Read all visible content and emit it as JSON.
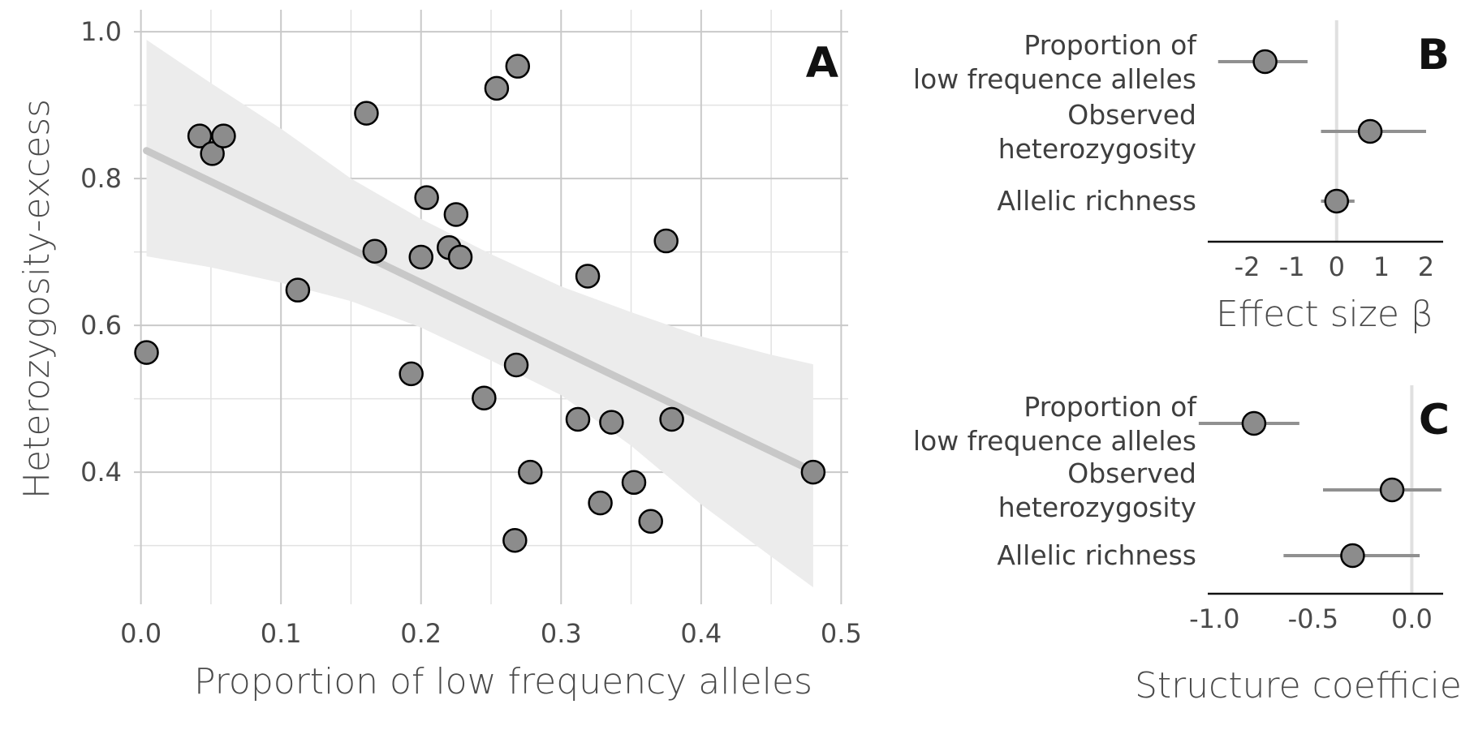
{
  "chart_data": [
    {
      "panel": "A",
      "type": "scatter",
      "xlabel": "Proportion of low frequency alleles",
      "ylabel": "Heterozygosity-excess",
      "xlim": [
        -0.005,
        0.505
      ],
      "ylim": [
        0.22,
        1.03
      ],
      "x_ticks": [
        0.0,
        0.1,
        0.2,
        0.3,
        0.4,
        0.5
      ],
      "x_tick_labels": [
        "0.0",
        "0.1",
        "0.2",
        "0.3",
        "0.4",
        "0.5"
      ],
      "y_ticks": [
        0.4,
        0.6,
        0.8,
        1.0
      ],
      "y_tick_labels": [
        "0.4",
        "0.6",
        "0.8",
        "1.0"
      ],
      "grid": true,
      "points": [
        {
          "x": 0.004,
          "y": 0.563
        },
        {
          "x": 0.042,
          "y": 0.858
        },
        {
          "x": 0.051,
          "y": 0.834
        },
        {
          "x": 0.059,
          "y": 0.858
        },
        {
          "x": 0.112,
          "y": 0.648
        },
        {
          "x": 0.161,
          "y": 0.889
        },
        {
          "x": 0.167,
          "y": 0.701
        },
        {
          "x": 0.193,
          "y": 0.534
        },
        {
          "x": 0.2,
          "y": 0.693
        },
        {
          "x": 0.204,
          "y": 0.774
        },
        {
          "x": 0.22,
          "y": 0.706
        },
        {
          "x": 0.225,
          "y": 0.751
        },
        {
          "x": 0.228,
          "y": 0.693
        },
        {
          "x": 0.245,
          "y": 0.501
        },
        {
          "x": 0.254,
          "y": 0.923
        },
        {
          "x": 0.267,
          "y": 0.307
        },
        {
          "x": 0.268,
          "y": 0.546
        },
        {
          "x": 0.269,
          "y": 0.953
        },
        {
          "x": 0.278,
          "y": 0.4
        },
        {
          "x": 0.312,
          "y": 0.472
        },
        {
          "x": 0.319,
          "y": 0.667
        },
        {
          "x": 0.328,
          "y": 0.358
        },
        {
          "x": 0.336,
          "y": 0.468
        },
        {
          "x": 0.352,
          "y": 0.386
        },
        {
          "x": 0.364,
          "y": 0.333
        },
        {
          "x": 0.375,
          "y": 0.715
        },
        {
          "x": 0.379,
          "y": 0.472
        },
        {
          "x": 0.48,
          "y": 0.4
        }
      ],
      "fit": {
        "x": [
          0.004,
          0.48
        ],
        "y": [
          0.838,
          0.401
        ]
      },
      "confidence_band": {
        "x": [
          0.004,
          0.05,
          0.1,
          0.15,
          0.2,
          0.25,
          0.3,
          0.35,
          0.4,
          0.45,
          0.48
        ],
        "lower": [
          0.694,
          0.679,
          0.658,
          0.633,
          0.597,
          0.552,
          0.505,
          0.436,
          0.356,
          0.285,
          0.243
        ],
        "upper": [
          0.989,
          0.93,
          0.868,
          0.8,
          0.745,
          0.697,
          0.653,
          0.618,
          0.585,
          0.56,
          0.547
        ]
      },
      "annotation": "A"
    },
    {
      "panel": "B",
      "type": "scatter",
      "xlabel": "Effect size β",
      "xlim": [
        -2.7,
        2.2
      ],
      "x_ticks": [
        -2,
        -1,
        0,
        1,
        2
      ],
      "x_tick_labels": [
        "-2",
        "-1",
        "0",
        "1",
        "2"
      ],
      "categories": [
        "Proportion of low frequence alleles",
        "Observed heterozygosity",
        "Allelic richness"
      ],
      "category_lines": [
        [
          "Proportion of",
          "low frequence alleles"
        ],
        [
          "Observed",
          "heterozygosity"
        ],
        [
          "Allelic richness"
        ]
      ],
      "values": [
        -1.6,
        0.75,
        0.0
      ],
      "ci_lower": [
        -2.65,
        -0.35,
        -0.35
      ],
      "ci_upper": [
        -0.65,
        2.0,
        0.4
      ],
      "annotation": "B"
    },
    {
      "panel": "C",
      "type": "scatter",
      "xlabel": "Structure coefficient",
      "xlim": [
        -1.1,
        0.2
      ],
      "x_ticks": [
        -1.0,
        -0.5,
        0.0
      ],
      "x_tick_labels": [
        "-1.0",
        "-0.5",
        "0.0"
      ],
      "categories": [
        "Proportion of low frequence alleles",
        "Observed heterozygosity",
        "Allelic richness"
      ],
      "category_lines": [
        [
          "Proportion of",
          "low frequence alleles"
        ],
        [
          "Observed",
          "heterozygosity"
        ],
        [
          "Allelic richness"
        ]
      ],
      "values": [
        -0.8,
        -0.1,
        -0.3
      ],
      "ci_lower": [
        -1.08,
        -0.45,
        -0.65
      ],
      "ci_upper": [
        -0.57,
        0.15,
        0.04
      ],
      "annotation": "C"
    }
  ]
}
